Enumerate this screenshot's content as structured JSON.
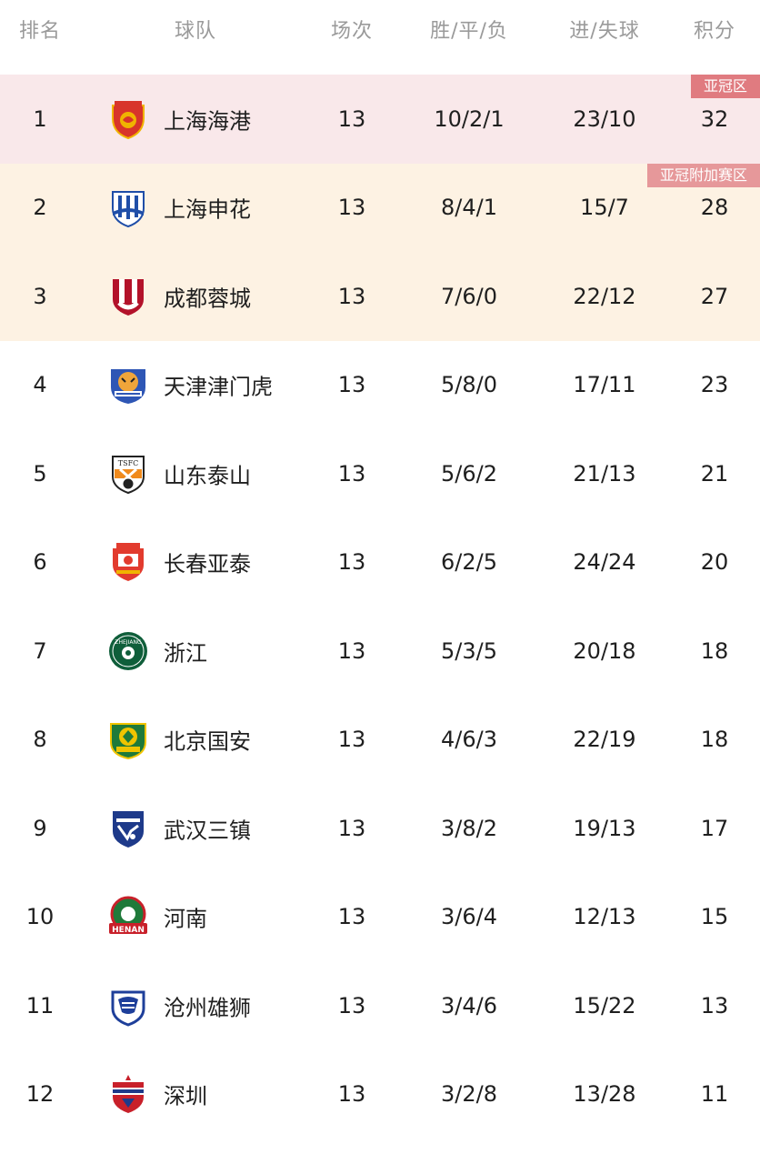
{
  "header": {
    "rank": "排名",
    "team": "球队",
    "played": "场次",
    "wdl": "胜/平/负",
    "goals": "进/失球",
    "points": "积分"
  },
  "zones": {
    "acl": {
      "label": "亚冠区",
      "row_bg": "#f9e8ea",
      "tag_bg": "#e07b80"
    },
    "acl_playoff": {
      "label": "亚冠附加赛区",
      "row_bg": "#fdf2e3",
      "tag_bg": "#e6989a"
    }
  },
  "rows": [
    {
      "rank": "1",
      "team": "上海海港",
      "played": "13",
      "wdl": "10/2/1",
      "goals": "23/10",
      "points": "32",
      "logo": "shanghai-port-crest-icon"
    },
    {
      "rank": "2",
      "team": "上海申花",
      "played": "13",
      "wdl": "8/4/1",
      "goals": "15/7",
      "points": "28",
      "logo": "shanghai-shenhua-crest-icon"
    },
    {
      "rank": "3",
      "team": "成都蓉城",
      "played": "13",
      "wdl": "7/6/0",
      "goals": "22/12",
      "points": "27",
      "logo": "chengdu-rongcheng-crest-icon"
    },
    {
      "rank": "4",
      "team": "天津津门虎",
      "played": "13",
      "wdl": "5/8/0",
      "goals": "17/11",
      "points": "23",
      "logo": "tianjin-jinmen-tiger-crest-icon"
    },
    {
      "rank": "5",
      "team": "山东泰山",
      "played": "13",
      "wdl": "5/6/2",
      "goals": "21/13",
      "points": "21",
      "logo": "shandong-taishan-crest-icon"
    },
    {
      "rank": "6",
      "team": "长春亚泰",
      "played": "13",
      "wdl": "6/2/5",
      "goals": "24/24",
      "points": "20",
      "logo": "changchun-yatai-crest-icon"
    },
    {
      "rank": "7",
      "team": "浙江",
      "played": "13",
      "wdl": "5/3/5",
      "goals": "20/18",
      "points": "18",
      "logo": "zhejiang-crest-icon"
    },
    {
      "rank": "8",
      "team": "北京国安",
      "played": "13",
      "wdl": "4/6/3",
      "goals": "22/19",
      "points": "18",
      "logo": "beijing-guoan-crest-icon"
    },
    {
      "rank": "9",
      "team": "武汉三镇",
      "played": "13",
      "wdl": "3/8/2",
      "goals": "19/13",
      "points": "17",
      "logo": "wuhan-three-towns-crest-icon"
    },
    {
      "rank": "10",
      "team": "河南",
      "played": "13",
      "wdl": "3/6/4",
      "goals": "12/13",
      "points": "15",
      "logo": "henan-crest-icon"
    },
    {
      "rank": "11",
      "team": "沧州雄狮",
      "played": "13",
      "wdl": "3/4/6",
      "goals": "15/22",
      "points": "13",
      "logo": "cangzhou-mighty-lions-crest-icon"
    },
    {
      "rank": "12",
      "team": "深圳",
      "played": "13",
      "wdl": "3/2/8",
      "goals": "13/28",
      "points": "11",
      "logo": "shenzhen-crest-icon"
    }
  ]
}
